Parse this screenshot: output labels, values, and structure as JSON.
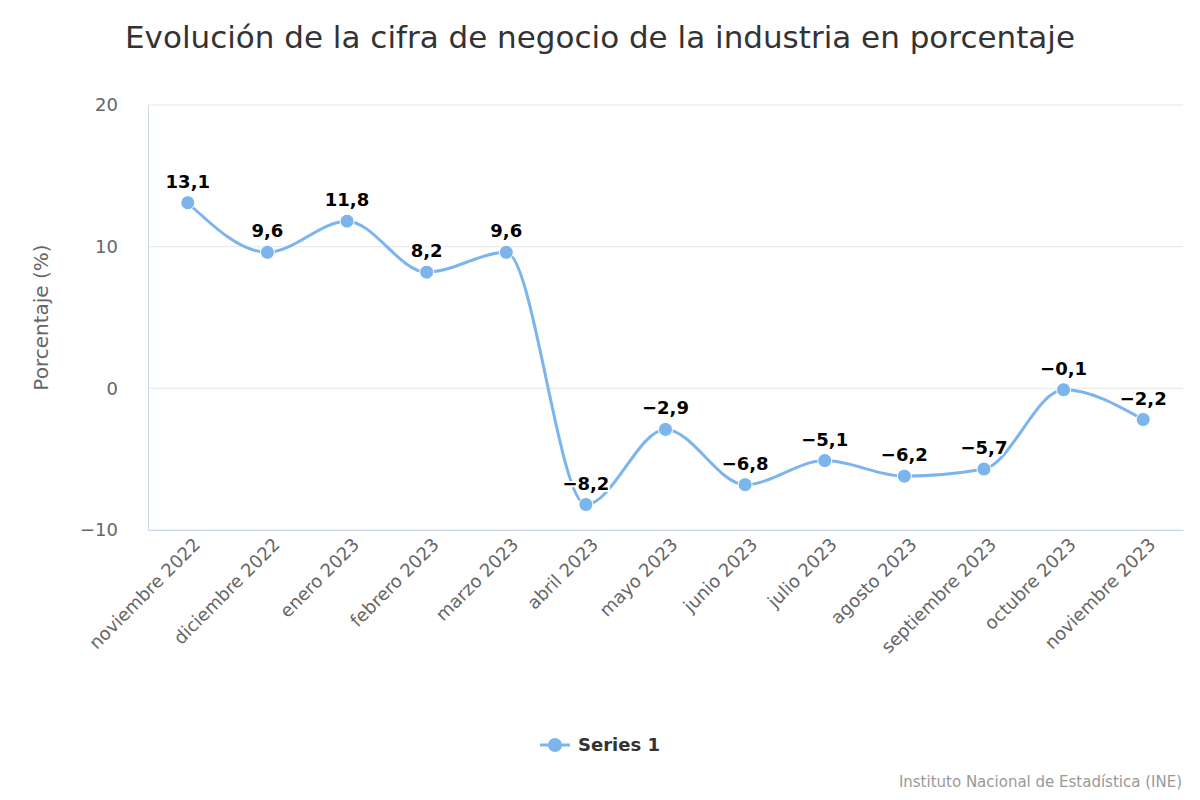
{
  "chart_data": {
    "type": "line",
    "title": "Evolución de la cifra de negocio de la industria en porcentaje",
    "y_label": "Porcentaje (%)",
    "categories": [
      "noviembre 2022",
      "diciembre 2022",
      "enero 2023",
      "febrero 2023",
      "marzo 2023",
      "abril 2023",
      "mayo 2023",
      "junio 2023",
      "julio 2023",
      "agosto 2023",
      "septiembre 2023",
      "octubre 2023",
      "noviembre 2023"
    ],
    "series": [
      {
        "name": "Series 1",
        "color": "#7cb5ec",
        "marker": "circle",
        "line_style": "solid",
        "values": [
          13.1,
          9.6,
          11.8,
          8.2,
          9.6,
          -8.2,
          -2.9,
          -6.8,
          -5.1,
          -6.2,
          -5.7,
          -0.1,
          -2.2
        ],
        "value_labels": [
          "13,1",
          "9,6",
          "11,8",
          "8,2",
          "9,6",
          "−8,2",
          "−2,9",
          "−6,8",
          "−5,1",
          "−6,2",
          "−5,7",
          "−0,1",
          "−2,2"
        ]
      }
    ],
    "ylim": [
      -10,
      20
    ],
    "yticks": [
      {
        "value": -10,
        "label": "−10"
      },
      0,
      10,
      20
    ],
    "grid": true,
    "data_labels": true,
    "legend": "bottom",
    "annotations": [
      "Instituto Nacional de Estadística (INE)"
    ]
  }
}
